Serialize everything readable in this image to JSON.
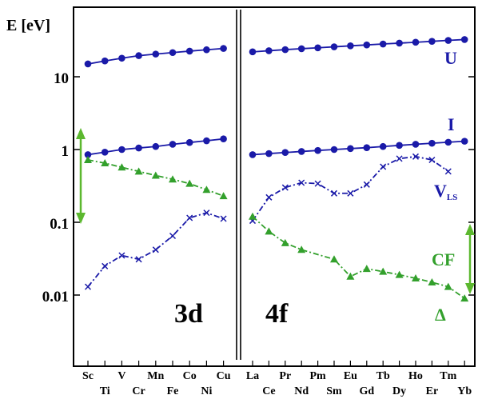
{
  "chart_data": {
    "type": "line",
    "ylabel": "E [eV]",
    "yscale": "log",
    "ylim": [
      0.005,
      50
    ],
    "ytick_labels": [
      "10",
      "1",
      "0.1",
      "0.01"
    ],
    "yticks": [
      10,
      1,
      0.1,
      0.01
    ],
    "grid": false,
    "panels": [
      {
        "label": "3d",
        "categories": [
          "Sc",
          "Ti",
          "V",
          "Cr",
          "Mn",
          "Fe",
          "Co",
          "Ni",
          "Cu"
        ],
        "series": [
          {
            "key": "U",
            "name": "U",
            "color": "#1a1aa8",
            "marker": "circle",
            "values": [
              15,
              16.5,
              18,
              19.5,
              20.5,
              21.5,
              22.5,
              23.5,
              24.5
            ]
          },
          {
            "key": "I",
            "name": "I",
            "color": "#1a1aa8",
            "marker": "circle",
            "values": [
              0.85,
              0.92,
              1.0,
              1.05,
              1.1,
              1.18,
              1.25,
              1.32,
              1.4
            ]
          },
          {
            "key": "CF",
            "name": "CF",
            "color": "#33a02c",
            "marker": "triangle",
            "values": [
              0.72,
              0.65,
              0.57,
              0.5,
              0.44,
              0.39,
              0.34,
              0.28,
              0.23
            ]
          },
          {
            "key": "VLS",
            "name": "V",
            "color": "#1a1aa8",
            "marker": "cross",
            "values": [
              0.013,
              0.025,
              0.035,
              0.031,
              0.042,
              0.065,
              0.115,
              0.135,
              0.112
            ]
          }
        ]
      },
      {
        "label": "4f",
        "categories": [
          "La",
          "Ce",
          "Pr",
          "Nd",
          "Pm",
          "Sm",
          "Eu",
          "Gd",
          "Tb",
          "Dy",
          "Ho",
          "Er",
          "Tm",
          "Yb"
        ],
        "series": [
          {
            "key": "U",
            "name": "U",
            "color": "#1a1aa8",
            "marker": "circle",
            "values": [
              22,
              22.8,
              23.6,
              24.3,
              25,
              25.8,
              26.6,
              27.4,
              28.2,
              29,
              29.8,
              30.7,
              31.6,
              32.5
            ]
          },
          {
            "key": "I",
            "name": "I",
            "color": "#1a1aa8",
            "marker": "circle",
            "values": [
              0.85,
              0.88,
              0.91,
              0.94,
              0.97,
              1.0,
              1.03,
              1.06,
              1.1,
              1.14,
              1.18,
              1.22,
              1.26,
              1.3
            ]
          },
          {
            "key": "VLS",
            "name": "V",
            "color": "#1a1aa8",
            "marker": "cross",
            "values": [
              0.105,
              0.22,
              0.3,
              0.35,
              0.34,
              0.25,
              0.25,
              0.33,
              0.58,
              0.75,
              0.8,
              0.72,
              0.5,
              null
            ]
          },
          {
            "key": "CF",
            "name": "CF",
            "color": "#33a02c",
            "marker": "triangle",
            "values": [
              0.12,
              0.075,
              0.052,
              0.042,
              null,
              0.031,
              0.018,
              0.023,
              0.021,
              0.019,
              0.017,
              0.015,
              0.013,
              0.009
            ]
          }
        ]
      }
    ],
    "annotations": {
      "U": "U",
      "I": "I",
      "VLS_main": "V",
      "VLS_sub": "LS",
      "CF": "CF",
      "delta": "Δ"
    },
    "colors": {
      "blue": "#1a1aa8",
      "green": "#33a02c",
      "arrow_green": "#5cb82f"
    }
  }
}
